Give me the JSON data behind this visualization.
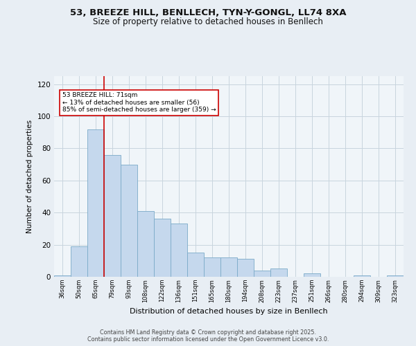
{
  "title1": "53, BREEZE HILL, BENLLECH, TYN-Y-GONGL, LL74 8XA",
  "title2": "Size of property relative to detached houses in Benllech",
  "xlabel": "Distribution of detached houses by size in Benllech",
  "ylabel": "Number of detached properties",
  "categories": [
    "36sqm",
    "50sqm",
    "65sqm",
    "79sqm",
    "93sqm",
    "108sqm",
    "122sqm",
    "136sqm",
    "151sqm",
    "165sqm",
    "180sqm",
    "194sqm",
    "208sqm",
    "223sqm",
    "237sqm",
    "251sqm",
    "266sqm",
    "280sqm",
    "294sqm",
    "309sqm",
    "323sqm"
  ],
  "values": [
    1,
    19,
    92,
    76,
    70,
    41,
    36,
    33,
    15,
    12,
    12,
    11,
    4,
    5,
    0,
    2,
    0,
    0,
    1,
    0,
    1
  ],
  "bar_color": "#c5d8ed",
  "bar_edge_color": "#7aaac8",
  "marker_index": 2,
  "marker_color": "#cc0000",
  "annotation_lines": [
    "53 BREEZE HILL: 71sqm",
    "← 13% of detached houses are smaller (56)",
    "85% of semi-detached houses are larger (359) →"
  ],
  "annotation_box_color": "#ffffff",
  "annotation_box_edge": "#cc0000",
  "ylim": [
    0,
    125
  ],
  "yticks": [
    0,
    20,
    40,
    60,
    80,
    100,
    120
  ],
  "footer1": "Contains HM Land Registry data © Crown copyright and database right 2025.",
  "footer2": "Contains public sector information licensed under the Open Government Licence v3.0.",
  "bg_color": "#e8eef4",
  "plot_bg_color": "#f0f5f9",
  "grid_color": "#c8d4de"
}
